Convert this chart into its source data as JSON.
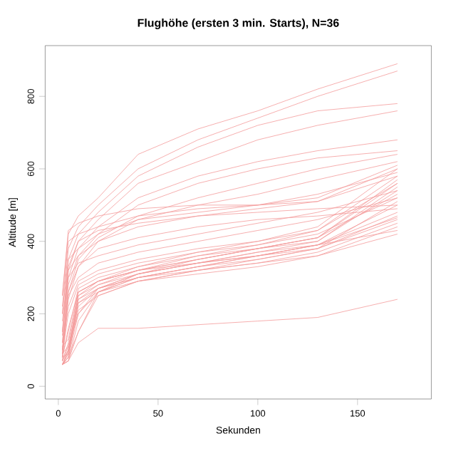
{
  "chart_data": {
    "type": "line",
    "title": "Flughöhe (ersten 3 min. Starts), N=36",
    "xlabel": "Sekunden",
    "ylabel": "Altitude [m]",
    "x": [
      2,
      5,
      10,
      20,
      40,
      70,
      100,
      130,
      170
    ],
    "xlim": [
      -6.6,
      187
    ],
    "ylim": [
      -35,
      940
    ],
    "xticks": [
      0,
      50,
      100,
      150
    ],
    "yticks": [
      0,
      200,
      400,
      600,
      800
    ],
    "series": [
      {
        "color": "#f49a9a",
        "values": [
          250,
          420,
          470,
          520,
          640,
          710,
          760,
          820,
          890
        ]
      },
      {
        "color": "#f49a9a",
        "values": [
          200,
          380,
          440,
          500,
          600,
          680,
          740,
          800,
          870
        ]
      },
      {
        "color": "#f49a9a",
        "values": [
          150,
          350,
          420,
          480,
          580,
          660,
          720,
          760,
          780
        ]
      },
      {
        "color": "#f49a9a",
        "values": [
          120,
          320,
          400,
          460,
          560,
          620,
          680,
          720,
          760
        ]
      },
      {
        "color": "#f49a9a",
        "values": [
          100,
          300,
          380,
          440,
          520,
          580,
          620,
          650,
          680
        ]
      },
      {
        "color": "#f49a9a",
        "values": [
          90,
          280,
          360,
          420,
          500,
          560,
          600,
          630,
          650
        ]
      },
      {
        "color": "#f49a9a",
        "values": [
          80,
          260,
          350,
          410,
          470,
          520,
          560,
          600,
          640
        ]
      },
      {
        "color": "#f49a9a",
        "values": [
          70,
          240,
          330,
          400,
          460,
          500,
          530,
          570,
          620
        ]
      },
      {
        "color": "#f49a9a",
        "values": [
          250,
          430,
          450,
          470,
          490,
          500,
          500,
          510,
          600
        ]
      },
      {
        "color": "#f49a9a",
        "values": [
          220,
          400,
          420,
          440,
          470,
          490,
          500,
          520,
          610
        ]
      },
      {
        "color": "#f49a9a",
        "values": [
          200,
          350,
          380,
          420,
          460,
          480,
          500,
          530,
          590
        ]
      },
      {
        "color": "#f49a9a",
        "values": [
          180,
          320,
          360,
          400,
          440,
          470,
          490,
          510,
          580
        ]
      },
      {
        "color": "#f49a9a",
        "values": [
          60,
          100,
          250,
          290,
          330,
          370,
          400,
          440,
          600
        ]
      },
      {
        "color": "#f49a9a",
        "values": [
          60,
          90,
          240,
          280,
          320,
          360,
          390,
          430,
          580
        ]
      },
      {
        "color": "#f49a9a",
        "values": [
          70,
          120,
          260,
          290,
          320,
          350,
          380,
          410,
          560
        ]
      },
      {
        "color": "#f49a9a",
        "values": [
          60,
          80,
          200,
          270,
          310,
          340,
          370,
          400,
          550
        ]
      },
      {
        "color": "#f49a9a",
        "values": [
          80,
          150,
          270,
          300,
          330,
          360,
          380,
          400,
          540
        ]
      },
      {
        "color": "#f49a9a",
        "values": [
          60,
          70,
          150,
          260,
          310,
          350,
          380,
          410,
          530
        ]
      },
      {
        "color": "#f49a9a",
        "values": [
          90,
          200,
          280,
          310,
          340,
          370,
          390,
          420,
          520
        ]
      },
      {
        "color": "#f49a9a",
        "values": [
          100,
          220,
          290,
          320,
          350,
          380,
          400,
          430,
          560
        ]
      },
      {
        "color": "#f49a9a",
        "values": [
          60,
          80,
          230,
          270,
          300,
          330,
          360,
          390,
          500
        ]
      },
      {
        "color": "#f49a9a",
        "values": [
          70,
          100,
          250,
          280,
          310,
          340,
          370,
          390,
          480
        ]
      },
      {
        "color": "#f49a9a",
        "values": [
          60,
          70,
          180,
          260,
          300,
          330,
          350,
          380,
          470
        ]
      },
      {
        "color": "#f49a9a",
        "values": [
          80,
          160,
          260,
          290,
          320,
          340,
          360,
          380,
          460
        ]
      },
      {
        "color": "#f49a9a",
        "values": [
          60,
          90,
          210,
          250,
          290,
          320,
          340,
          370,
          450
        ]
      },
      {
        "color": "#f49a9a",
        "values": [
          70,
          110,
          240,
          270,
          300,
          320,
          340,
          360,
          440
        ]
      },
      {
        "color": "#f49a9a",
        "values": [
          120,
          250,
          300,
          340,
          370,
          400,
          430,
          460,
          520
        ]
      },
      {
        "color": "#f49a9a",
        "values": [
          150,
          300,
          340,
          360,
          390,
          420,
          450,
          480,
          540
        ]
      },
      {
        "color": "#f49a9a",
        "values": [
          60,
          100,
          220,
          270,
          310,
          340,
          360,
          390,
          430
        ]
      },
      {
        "color": "#f49a9a",
        "values": [
          60,
          80,
          150,
          250,
          290,
          310,
          330,
          360,
          420
        ]
      },
      {
        "color": "#f49a9a",
        "values": [
          60,
          70,
          120,
          160,
          160,
          170,
          180,
          190,
          240
        ]
      },
      {
        "color": "#f49a9a",
        "values": [
          140,
          330,
          400,
          430,
          450,
          470,
          480,
          490,
          500
        ]
      },
      {
        "color": "#f49a9a",
        "values": [
          100,
          260,
          330,
          380,
          410,
          440,
          460,
          470,
          490
        ]
      },
      {
        "color": "#f49a9a",
        "values": [
          80,
          90,
          230,
          260,
          290,
          320,
          350,
          380,
          510
        ]
      },
      {
        "color": "#f49a9a",
        "values": [
          110,
          130,
          260,
          290,
          320,
          350,
          380,
          410,
          570
        ]
      },
      {
        "color": "#f49a9a",
        "values": [
          90,
          110,
          200,
          260,
          300,
          330,
          360,
          390,
          465
        ]
      }
    ]
  }
}
